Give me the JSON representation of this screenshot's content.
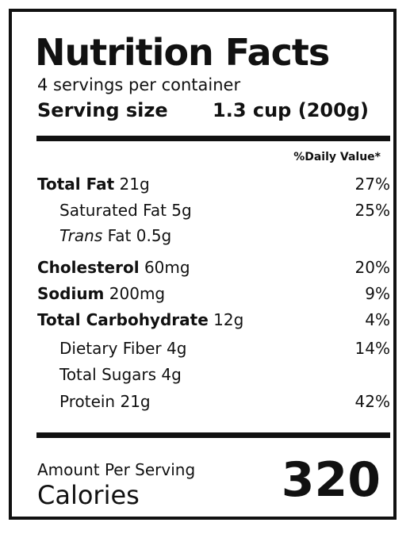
{
  "label": {
    "title": "Nutrition Facts",
    "servings_per_container": "4 servings per container",
    "serving_size_label": "Serving size",
    "serving_size_value": "1.3 cup (200g)",
    "daily_value_header": "%Daily Value*",
    "nutrients": [
      {
        "name": "Total Fat",
        "amount": "21g",
        "percent": "27%"
      },
      {
        "name": "Saturated Fat",
        "amount": "5g",
        "percent": "25%"
      },
      {
        "name": "Trans",
        "name_rest": "Fat",
        "amount": "0.5g",
        "percent": ""
      },
      {
        "name": "Cholesterol",
        "amount": "60mg",
        "percent": "20%"
      },
      {
        "name": "Sodium",
        "amount": "200mg",
        "percent": "9%"
      },
      {
        "name": "Total Carbohydrate",
        "amount": "12g",
        "percent": "4%"
      },
      {
        "name": "Dietary Fiber",
        "amount": "4g",
        "percent": "14%"
      },
      {
        "name": "Total Sugars",
        "amount": "4g",
        "percent": ""
      },
      {
        "name": "Protein",
        "amount": "21g",
        "percent": "42%"
      }
    ],
    "amount_per_serving": "Amount Per Serving",
    "calories_label": "Calories",
    "calories_value": "320"
  }
}
